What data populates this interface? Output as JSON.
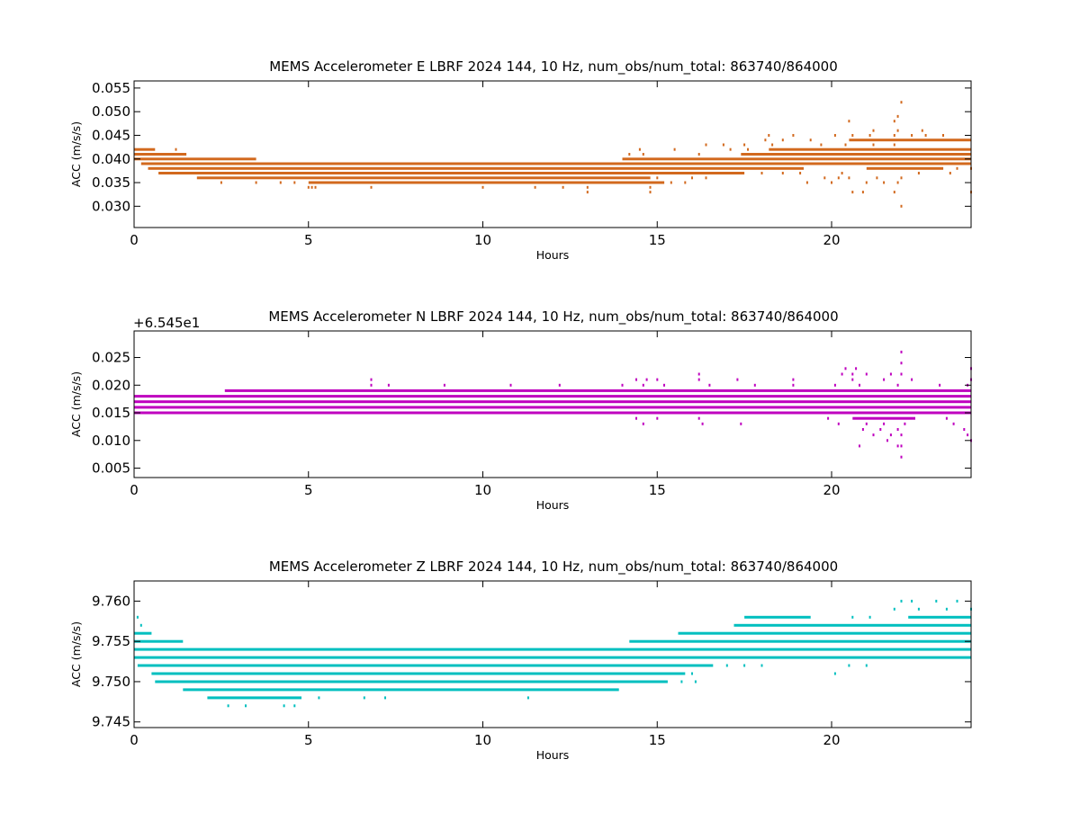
{
  "chart_data": [
    {
      "type": "scatter",
      "title": "MEMS Accelerometer E LBRF 2024 144, 10 Hz, num_obs/num_total: 863740/864000",
      "xlabel": "Hours",
      "ylabel": "ACC (m/s/s)",
      "offset_text": "",
      "xlim": [
        0,
        24
      ],
      "ylim": [
        0.0255,
        0.0565
      ],
      "xticks": [
        0,
        5,
        10,
        15,
        20
      ],
      "xtick_labels": [
        "0",
        "5",
        "10",
        "15",
        "20"
      ],
      "yticks": [
        0.03,
        0.035,
        0.04,
        0.045,
        0.05,
        0.055
      ],
      "ytick_labels": [
        "0.030",
        "0.035",
        "0.040",
        "0.045",
        "0.050",
        "0.055"
      ],
      "color": "#d2691e",
      "grid": false,
      "legend": "none",
      "series": [
        {
          "value": 0.034,
          "points": [
            5.0,
            5.1,
            5.2,
            6.8,
            10.0,
            11.5,
            12.3,
            13.0,
            14.8
          ]
        },
        {
          "value": 0.035,
          "segments": [
            [
              5.0,
              15.2
            ]
          ],
          "points": [
            2.5,
            3.5,
            4.2,
            4.6,
            15.4,
            15.8,
            19.3,
            20.0,
            21.0,
            21.5,
            21.9
          ]
        },
        {
          "value": 0.036,
          "segments": [
            [
              1.8,
              14.8
            ]
          ],
          "points": [
            15.0,
            16.0,
            16.4,
            19.8,
            20.2,
            20.5,
            21.3,
            22.0
          ]
        },
        {
          "value": 0.037,
          "segments": [
            [
              0.7,
              17.5
            ]
          ],
          "points": [
            18.0,
            18.6,
            19.1,
            20.3,
            22.5,
            23.4
          ]
        },
        {
          "value": 0.038,
          "segments": [
            [
              0.4,
              19.2
            ],
            [
              21.0,
              23.2
            ]
          ],
          "points": [
            23.6,
            24.0
          ]
        },
        {
          "value": 0.039,
          "segments": [
            [
              0.2,
              24.0
            ]
          ]
        },
        {
          "value": 0.04,
          "segments": [
            [
              0.0,
              3.5
            ],
            [
              14.0,
              24.0
            ]
          ]
        },
        {
          "value": 0.041,
          "segments": [
            [
              0.0,
              1.5
            ],
            [
              17.4,
              24.0
            ]
          ],
          "points": [
            14.2,
            14.6,
            16.2
          ]
        },
        {
          "value": 0.042,
          "segments": [
            [
              0.0,
              0.6
            ],
            [
              18.2,
              24.0
            ]
          ],
          "points": [
            1.2,
            14.5,
            15.5,
            17.1,
            17.6
          ]
        },
        {
          "value": 0.043,
          "points": [
            16.4,
            16.9,
            17.5,
            18.3,
            19.7,
            20.4,
            21.2,
            21.8
          ]
        },
        {
          "value": 0.044,
          "segments": [
            [
              20.5,
              24.0
            ]
          ],
          "points": [
            18.1,
            18.6,
            19.4
          ]
        },
        {
          "value": 0.045,
          "points": [
            18.2,
            18.9,
            20.1,
            20.6,
            21.1,
            21.8,
            22.3,
            22.7,
            23.2
          ]
        },
        {
          "value": 0.046,
          "points": [
            21.2,
            21.9,
            22.6
          ]
        },
        {
          "value": 0.048,
          "points": [
            20.5,
            21.8
          ]
        },
        {
          "value": 0.049,
          "points": [
            21.9
          ]
        },
        {
          "value": 0.052,
          "points": [
            22.0
          ]
        },
        {
          "value": 0.033,
          "points": [
            13.0,
            14.8,
            20.6,
            20.9,
            21.8,
            24.0
          ]
        },
        {
          "value": 0.03,
          "points": [
            22.0
          ]
        }
      ]
    },
    {
      "type": "scatter",
      "title": "MEMS Accelerometer N LBRF 2024 144, 10 Hz, num_obs/num_total: 863740/864000",
      "xlabel": "Hours",
      "ylabel": "ACC (m/s/s)",
      "offset_text": "+6.545e1",
      "xlim": [
        0,
        24
      ],
      "ylim": [
        0.0033,
        0.0298
      ],
      "xticks": [
        0,
        5,
        10,
        15,
        20
      ],
      "xtick_labels": [
        "0",
        "5",
        "10",
        "15",
        "20"
      ],
      "yticks": [
        0.005,
        0.01,
        0.015,
        0.02,
        0.025
      ],
      "ytick_labels": [
        "0.005",
        "0.010",
        "0.015",
        "0.020",
        "0.025"
      ],
      "color": "#bf00bf",
      "grid": false,
      "legend": "none",
      "series": [
        {
          "value": 0.007,
          "points": [
            22.0
          ]
        },
        {
          "value": 0.009,
          "points": [
            20.8,
            21.9,
            22.0
          ]
        },
        {
          "value": 0.01,
          "points": [
            21.6,
            24.0
          ]
        },
        {
          "value": 0.011,
          "points": [
            21.2,
            21.7,
            22.0,
            23.9
          ]
        },
        {
          "value": 0.012,
          "points": [
            20.9,
            21.4,
            21.9,
            23.8
          ]
        },
        {
          "value": 0.013,
          "points": [
            14.6,
            16.3,
            17.4,
            20.2,
            21.0,
            21.5,
            22.1,
            23.5
          ]
        },
        {
          "value": 0.014,
          "segments": [
            [
              20.6,
              22.4
            ]
          ],
          "points": [
            14.4,
            15.0,
            16.2,
            19.9,
            23.3
          ]
        },
        {
          "value": 0.015,
          "segments": [
            [
              0.0,
              24.0
            ]
          ]
        },
        {
          "value": 0.016,
          "segments": [
            [
              0.0,
              24.0
            ]
          ]
        },
        {
          "value": 0.017,
          "segments": [
            [
              0.0,
              24.0
            ]
          ]
        },
        {
          "value": 0.018,
          "segments": [
            [
              0.0,
              24.0
            ]
          ]
        },
        {
          "value": 0.019,
          "segments": [
            [
              2.6,
              24.0
            ]
          ]
        },
        {
          "value": 0.02,
          "points": [
            6.8,
            7.3,
            8.9,
            10.8,
            12.2,
            14.0,
            14.6,
            15.2,
            16.5,
            17.8,
            18.9,
            20.1,
            20.8,
            21.9,
            23.1,
            23.9
          ]
        },
        {
          "value": 0.021,
          "points": [
            6.8,
            14.4,
            14.7,
            15.0,
            16.2,
            17.3,
            18.9,
            20.6,
            21.5,
            22.3,
            24.0
          ]
        },
        {
          "value": 0.022,
          "points": [
            16.2,
            20.3,
            20.6,
            21.0,
            21.7,
            22.0
          ]
        },
        {
          "value": 0.023,
          "points": [
            20.4,
            20.7,
            24.0
          ]
        },
        {
          "value": 0.024,
          "points": [
            22.0
          ]
        },
        {
          "value": 0.026,
          "points": [
            22.0
          ]
        }
      ]
    },
    {
      "type": "scatter",
      "title": "MEMS Accelerometer Z LBRF 2024 144, 10 Hz, num_obs/num_total: 863740/864000",
      "xlabel": "Hours",
      "ylabel": "ACC (m/s/s)",
      "offset_text": "",
      "xlim": [
        0,
        24
      ],
      "ylim": [
        9.7443,
        9.7625
      ],
      "xticks": [
        0,
        5,
        10,
        15,
        20
      ],
      "xtick_labels": [
        "0",
        "5",
        "10",
        "15",
        "20"
      ],
      "yticks": [
        9.745,
        9.75,
        9.755,
        9.76
      ],
      "ytick_labels": [
        "9.745",
        "9.750",
        "9.755",
        "9.760"
      ],
      "color": "#00bfbf",
      "grid": false,
      "legend": "none",
      "series": [
        {
          "value": 9.747,
          "points": [
            2.7,
            3.2,
            4.3,
            4.6
          ]
        },
        {
          "value": 9.748,
          "segments": [
            [
              2.1,
              4.8
            ]
          ],
          "points": [
            5.3,
            6.6,
            7.2,
            11.3
          ]
        },
        {
          "value": 9.749,
          "segments": [
            [
              1.4,
              13.9
            ]
          ]
        },
        {
          "value": 9.75,
          "segments": [
            [
              0.6,
              15.3
            ]
          ],
          "points": [
            15.7,
            16.1
          ]
        },
        {
          "value": 9.751,
          "segments": [
            [
              0.5,
              15.8
            ]
          ],
          "points": [
            16.0,
            20.1
          ]
        },
        {
          "value": 9.752,
          "segments": [
            [
              0.1,
              16.6
            ]
          ],
          "points": [
            17.0,
            17.5,
            18.0,
            20.5,
            21.0
          ]
        },
        {
          "value": 9.753,
          "segments": [
            [
              0.0,
              24.0
            ]
          ]
        },
        {
          "value": 9.754,
          "segments": [
            [
              0.0,
              24.0
            ]
          ]
        },
        {
          "value": 9.755,
          "segments": [
            [
              0.0,
              1.4
            ],
            [
              14.2,
              24.0
            ]
          ]
        },
        {
          "value": 9.756,
          "segments": [
            [
              0.0,
              0.5
            ],
            [
              15.6,
              24.0
            ]
          ]
        },
        {
          "value": 9.757,
          "segments": [
            [
              17.2,
              24.0
            ]
          ],
          "points": [
            0.2
          ]
        },
        {
          "value": 9.758,
          "segments": [
            [
              17.5,
              19.4
            ],
            [
              22.2,
              24.0
            ]
          ],
          "points": [
            0.1,
            20.6,
            21.1
          ]
        },
        {
          "value": 9.759,
          "points": [
            21.8,
            22.5,
            23.3,
            24.0
          ]
        },
        {
          "value": 9.76,
          "points": [
            22.0,
            22.3,
            23.0,
            23.6
          ]
        }
      ]
    }
  ]
}
